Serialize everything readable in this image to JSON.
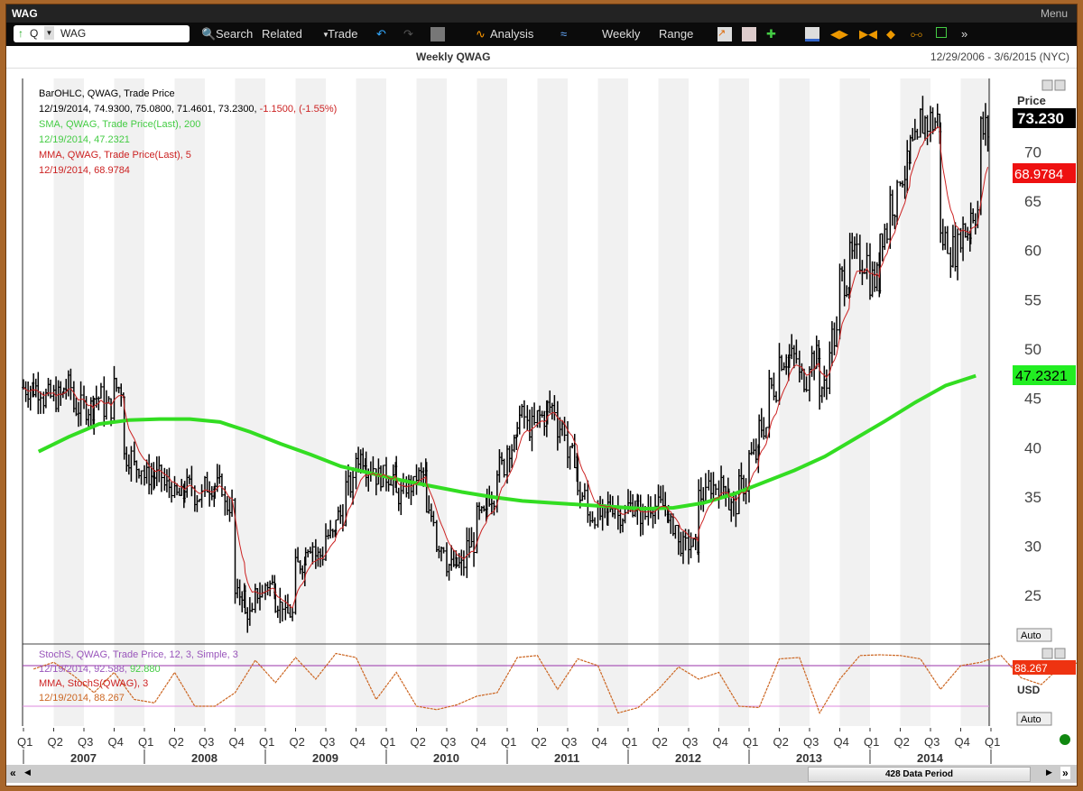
{
  "window": {
    "title": "WAG",
    "menu": "Menu"
  },
  "toolbar": {
    "symbol_prefix": "Q",
    "symbol": "WAG",
    "search": "Search",
    "related": "Related",
    "trade": "Trade",
    "analysis": "Analysis",
    "period": "Weekly",
    "range": "Range"
  },
  "header": {
    "title": "Weekly QWAG",
    "date_range": "12/29/2006 - 3/6/2015 (NYC)"
  },
  "legend": {
    "l1": "BarOHLC, QWAG, Trade Price",
    "l2a": "12/19/2014, 74.9300, 75.0800, 71.4601, 73.2300, ",
    "l2b": "-1.1500, (-1.55%)",
    "l3": "SMA, QWAG, Trade Price(Last),  200",
    "l4": "12/19/2014, 47.2321",
    "l5": "MMA, QWAG, Trade Price(Last),  5",
    "l6": "12/19/2014, 68.9784",
    "s1": "StochS, QWAG, Trade Price,  12, 3, Simple, 3",
    "s2a": "12/19/2014, 92.588, ",
    "s2b": "92.880",
    "s3": "MMA, StochS(QWAG),  3",
    "s4": "12/19/2014, 88.267"
  },
  "axis": {
    "price_label": "Price",
    "last_price": "73.230",
    "mma_value": "68.9784",
    "sma_value": "47.2321",
    "stoch_value": "88.267",
    "currency": "USD",
    "auto": "Auto"
  },
  "status": {
    "data_period": "428 Data Period"
  },
  "colors": {
    "sma": "#33dd22",
    "mma": "#cc2222",
    "stoch": "#cc6622",
    "band": "#9933aa",
    "price": "#000000"
  },
  "chart_data": {
    "type": "line",
    "title": "Weekly QWAG",
    "ylabel": "Price",
    "ylim": [
      20,
      77
    ],
    "yticks": [
      25,
      30,
      35,
      40,
      45,
      50,
      55,
      60,
      65,
      70
    ],
    "x_quarters": [
      "Q1",
      "Q2",
      "Q3",
      "Q4",
      "Q1",
      "Q2",
      "Q3",
      "Q4",
      "Q1",
      "Q2",
      "Q3",
      "Q4",
      "Q1",
      "Q2",
      "Q3",
      "Q4",
      "Q1",
      "Q2",
      "Q3",
      "Q4",
      "Q1",
      "Q2",
      "Q3",
      "Q4",
      "Q1",
      "Q2",
      "Q3",
      "Q4",
      "Q1",
      "Q2",
      "Q3",
      "Q4",
      "Q1"
    ],
    "x_years": [
      "2007",
      "2008",
      "2009",
      "2010",
      "2011",
      "2012",
      "2013",
      "2014"
    ],
    "monthly_close_from_2007_01": [
      46,
      46,
      45,
      45,
      46,
      44,
      44,
      45,
      44,
      46,
      39,
      38,
      37,
      37,
      36,
      35,
      36,
      35,
      36,
      36,
      34,
      25,
      23,
      25,
      26,
      24,
      23,
      28,
      30,
      29,
      31,
      33,
      36,
      39,
      38,
      37,
      37,
      35,
      36,
      37,
      33,
      30,
      28,
      28,
      30,
      33,
      35,
      38,
      40,
      43,
      42,
      43,
      44,
      42,
      39,
      35,
      33,
      33,
      34,
      33,
      34,
      33,
      34,
      34,
      32,
      30,
      30,
      35,
      36,
      36,
      34,
      36,
      39,
      42,
      46,
      49,
      49,
      47,
      49,
      46,
      51,
      57,
      59,
      59,
      57,
      62,
      65,
      68,
      70,
      73,
      73,
      61,
      60,
      62,
      64,
      72
    ],
    "sma200_quarterly_from_2007_q1": [
      39.5,
      41,
      42.3,
      42.7,
      42.8,
      42.8,
      42.5,
      41.5,
      40.3,
      39.2,
      38,
      37.3,
      36.6,
      36,
      35.4,
      34.9,
      34.5,
      34.3,
      34.1,
      33.9,
      33.7,
      33.8,
      34.3,
      35.2,
      36.4,
      37.6,
      39,
      40.8,
      42.6,
      44.5,
      46.2,
      47.2
    ],
    "stoch_bimonthly_from_2007_01": [
      75,
      85,
      65,
      40,
      70,
      30,
      25,
      70,
      20,
      20,
      40,
      88,
      55,
      92,
      60,
      98,
      92,
      30,
      70,
      20,
      15,
      22,
      35,
      40,
      92,
      95,
      45,
      90,
      80,
      10,
      18,
      45,
      78,
      60,
      70,
      20,
      18,
      90,
      92,
      10,
      60,
      95,
      96,
      95,
      90,
      45,
      80,
      85,
      95,
      62,
      52,
      80,
      85,
      90,
      28,
      20,
      80,
      92
    ],
    "stoch_levels": [
      80,
      20
    ]
  }
}
